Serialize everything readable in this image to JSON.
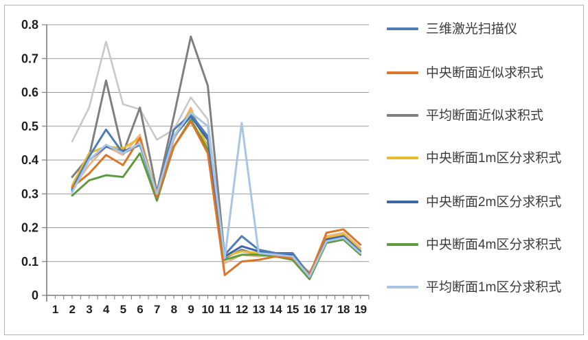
{
  "chart_data": {
    "type": "line",
    "title": "",
    "xlabel": "",
    "ylabel": "",
    "ylim": [
      0,
      0.8
    ],
    "grid": "horizontal",
    "legend_position": "right",
    "y_ticks": [
      "0.8",
      "0.7",
      "0.6",
      "0.5",
      "0.4",
      "0.3",
      "0.2",
      "0.1",
      "0"
    ],
    "x_categories": [
      1,
      2,
      3,
      4,
      5,
      6,
      7,
      8,
      9,
      10,
      11,
      12,
      13,
      14,
      15,
      16,
      17,
      18,
      19
    ],
    "x_values": [
      2,
      3,
      4,
      5,
      6,
      7,
      8,
      9,
      10,
      11,
      12,
      13,
      14,
      15,
      16,
      17,
      18,
      19
    ],
    "series": [
      {
        "name": "3d-laser-scanner",
        "label": "三维激光扫描仪",
        "color": "#4e7db5",
        "in_legend": true,
        "values": [
          0.315,
          0.41,
          0.49,
          0.42,
          0.445,
          0.3,
          0.49,
          0.535,
          0.47,
          0.12,
          0.175,
          0.135,
          0.125,
          0.125,
          0.06,
          0.16,
          0.17,
          0.13
        ]
      },
      {
        "name": "central-section-approx",
        "label": "中央断面近似求积式",
        "color": "#dd7428",
        "in_legend": true,
        "values": [
          0.32,
          0.36,
          0.415,
          0.385,
          0.465,
          0.29,
          0.44,
          0.515,
          0.42,
          0.06,
          0.1,
          0.105,
          0.115,
          0.11,
          0.06,
          0.185,
          0.195,
          0.15
        ]
      },
      {
        "name": "average-section-approx",
        "label": "平均断面近似求积式",
        "color": "#7f7f7f",
        "in_legend": true,
        "values": [
          0.35,
          0.41,
          0.635,
          0.42,
          0.555,
          0.305,
          0.53,
          0.765,
          0.62,
          0.11,
          0.135,
          0.12,
          0.12,
          0.11,
          0.065,
          0.16,
          0.175,
          0.125
        ]
      },
      {
        "name": "central-section-1m",
        "label": "中央断面1m区分求积式",
        "color": "#e8bc2c",
        "in_legend": true,
        "values": [
          0.325,
          0.42,
          0.44,
          0.435,
          0.465,
          0.3,
          0.47,
          0.545,
          0.44,
          0.115,
          0.13,
          0.125,
          0.12,
          0.11,
          0.055,
          0.17,
          0.18,
          0.135
        ]
      },
      {
        "name": "central-section-2m",
        "label": "中央断面2m区分求积式",
        "color": "#3c64a8",
        "in_legend": true,
        "values": [
          0.31,
          0.4,
          0.44,
          0.425,
          0.445,
          0.295,
          0.47,
          0.53,
          0.46,
          0.115,
          0.145,
          0.13,
          0.125,
          0.12,
          0.055,
          0.165,
          0.175,
          0.13
        ]
      },
      {
        "name": "central-section-4m",
        "label": "中央断面4m区分求积式",
        "color": "#5e9b3e",
        "in_legend": true,
        "values": [
          0.295,
          0.34,
          0.355,
          0.35,
          0.42,
          0.28,
          0.44,
          0.52,
          0.43,
          0.105,
          0.12,
          0.12,
          0.115,
          0.105,
          0.048,
          0.155,
          0.165,
          0.12
        ]
      },
      {
        "name": "average-section-1m",
        "label": "平均断面1m区分求积式",
        "color": "#a9c5e5",
        "in_legend": true,
        "values": [
          0.305,
          0.4,
          0.445,
          0.42,
          0.45,
          0.3,
          0.47,
          0.54,
          0.5,
          0.11,
          0.51,
          0.125,
          0.12,
          0.115,
          0.055,
          0.16,
          0.17,
          0.125
        ]
      },
      {
        "name": "unlabeled-light-orange-line",
        "label": "",
        "color": "#f0b183",
        "in_legend": false,
        "values": [
          0.315,
          0.385,
          0.44,
          0.415,
          0.475,
          0.285,
          0.46,
          0.555,
          0.43,
          0.095,
          0.12,
          0.115,
          0.12,
          0.11,
          0.05,
          0.175,
          0.185,
          0.14
        ]
      },
      {
        "name": "unlabeled-light-gray-line",
        "label": "",
        "color": "#c8c8c8",
        "in_legend": false,
        "values": [
          0.455,
          0.555,
          0.75,
          0.565,
          0.55,
          0.46,
          0.49,
          0.585,
          0.52,
          0.115,
          0.13,
          0.12,
          0.115,
          0.11,
          0.07,
          0.155,
          0.17,
          0.125
        ]
      }
    ],
    "colors": {
      "gridline": "#999999",
      "axis": "#7d7d7d",
      "tick_label": "#1f1f1f",
      "legend_text": "#3c3c3c",
      "border": "#b3b3b3"
    }
  }
}
